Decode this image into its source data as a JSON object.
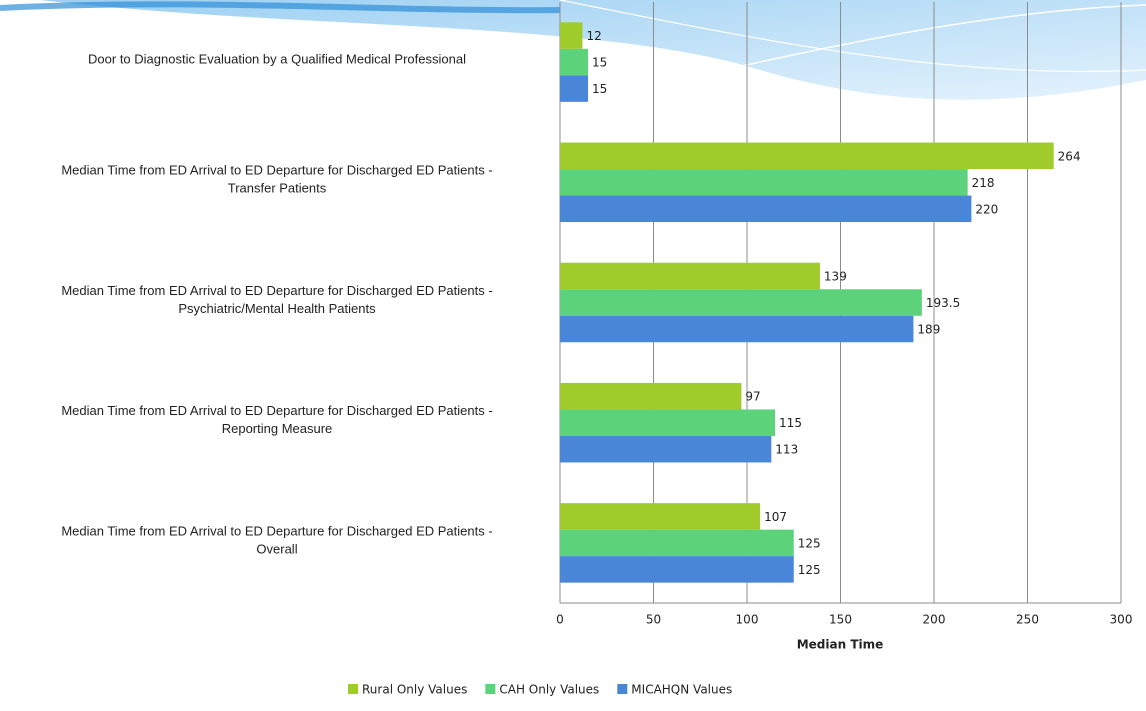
{
  "chart_data": {
    "type": "hbar",
    "categories": [
      [
        "Door to Diagnostic Evaluation by a Qualified Medical Professional"
      ],
      [
        "Median Time from ED Arrival to ED Departure for Discharged ED Patients -",
        "Transfer Patients"
      ],
      [
        "Median Time from ED Arrival to ED Departure for Discharged ED Patients -",
        "Psychiatric/Mental Health Patients"
      ],
      [
        "Median Time from ED Arrival to ED Departure for Discharged ED Patients -",
        "Reporting Measure"
      ],
      [
        "Median Time from ED Arrival to ED Departure for Discharged ED Patients -",
        "Overall"
      ]
    ],
    "series": [
      {
        "name": "Rural Only Values",
        "color": "#9fcc2a",
        "values": [
          12,
          264,
          139,
          97,
          107
        ]
      },
      {
        "name": "CAH Only Values",
        "color": "#5cd27a",
        "values": [
          15,
          218,
          193.5,
          115,
          125
        ]
      },
      {
        "name": "MICAHQN Values",
        "color": "#4a86d8",
        "values": [
          15,
          220,
          189,
          113,
          125
        ]
      }
    ],
    "x_label": "Median Time",
    "xlim": [
      0,
      300
    ],
    "xticks": [
      0,
      50,
      100,
      150,
      200,
      250,
      300
    ],
    "grid": true,
    "legend": "bottom"
  }
}
